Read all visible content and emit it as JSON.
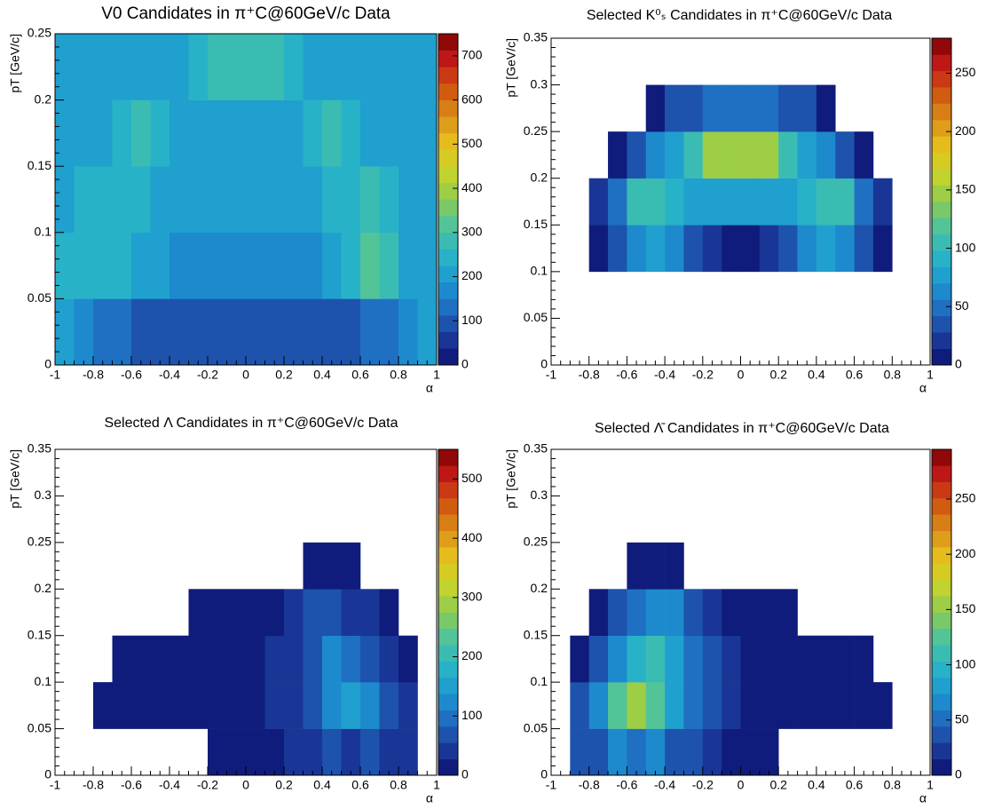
{
  "chart_data": [
    {
      "type": "heatmap",
      "title": "V0 Candidates in π⁺C@60GeV/c Data",
      "x_label": "α",
      "y_label": "pT [GeV/c]",
      "xlim": [
        -1,
        1
      ],
      "ylim": [
        0,
        0.25
      ],
      "zlim": [
        0,
        750
      ],
      "xticks": [
        -1,
        -0.8,
        -0.6,
        -0.4,
        -0.2,
        0,
        0.2,
        0.4,
        0.6,
        0.8,
        1
      ],
      "yticks": [
        0,
        0.05,
        0.1,
        0.15,
        0.2,
        0.25
      ],
      "zticks": [
        0,
        100,
        200,
        300,
        400,
        500,
        600,
        700
      ],
      "xbins": [
        -1,
        -0.9,
        -0.8,
        -0.7,
        -0.6,
        -0.5,
        -0.4,
        -0.3,
        -0.2,
        -0.1,
        0,
        0.1,
        0.2,
        0.3,
        0.4,
        0.5,
        0.6,
        0.7,
        0.8,
        0.9,
        1
      ],
      "ybins": [
        0,
        0.05,
        0.1,
        0.15,
        0.2,
        0.25
      ],
      "colorscale": [
        "#0b0f6e",
        "#1b3a9a",
        "#1f6cc0",
        "#1c97d2",
        "#29b5c6",
        "#4cc3a0",
        "#8ccc52",
        "#c6d42a",
        "#e6c11c",
        "#da8f17",
        "#d0560f",
        "#c41b17",
        "#7a0000"
      ],
      "z": [
        [
          200,
          160,
          140,
          120,
          110,
          100,
          100,
          100,
          100,
          100,
          100,
          100,
          100,
          100,
          100,
          110,
          120,
          130,
          150,
          200
        ],
        [
          230,
          230,
          260,
          230,
          200,
          190,
          180,
          180,
          180,
          180,
          180,
          180,
          180,
          180,
          200,
          260,
          330,
          280,
          220,
          220
        ],
        [
          220,
          230,
          260,
          260,
          230,
          210,
          200,
          200,
          200,
          200,
          200,
          200,
          200,
          210,
          230,
          260,
          280,
          240,
          210,
          210
        ],
        [
          200,
          200,
          200,
          230,
          270,
          240,
          220,
          210,
          210,
          210,
          210,
          210,
          220,
          240,
          270,
          230,
          200,
          200,
          200,
          200
        ],
        [
          190,
          190,
          190,
          190,
          190,
          200,
          220,
          260,
          280,
          290,
          290,
          280,
          260,
          220,
          200,
          190,
          190,
          190,
          190,
          190
        ]
      ]
    },
    {
      "type": "heatmap",
      "title": "Selected K⁰ₛ Candidates in π⁺C@60GeV/c Data",
      "x_label": "α",
      "y_label": "pT [GeV/c]",
      "xlim": [
        -1,
        1
      ],
      "ylim": [
        0,
        0.35
      ],
      "zlim": [
        0,
        280
      ],
      "xticks": [
        -1,
        -0.8,
        -0.6,
        -0.4,
        -0.2,
        0,
        0.2,
        0.4,
        0.6,
        0.8,
        1
      ],
      "yticks": [
        0,
        0.05,
        0.1,
        0.15,
        0.2,
        0.25,
        0.3,
        0.35
      ],
      "zticks": [
        0,
        50,
        100,
        150,
        200,
        250
      ],
      "xbins": [
        -1,
        -0.9,
        -0.8,
        -0.7,
        -0.6,
        -0.5,
        -0.4,
        -0.3,
        -0.2,
        -0.1,
        0,
        0.1,
        0.2,
        0.3,
        0.4,
        0.5,
        0.6,
        0.7,
        0.8,
        0.9,
        1
      ],
      "ybins": [
        0,
        0.05,
        0.1,
        0.15,
        0.2,
        0.25,
        0.3,
        0.35
      ],
      "colorscale": [
        "#0b0f6e",
        "#1b3a9a",
        "#1f6cc0",
        "#1c97d2",
        "#29b5c6",
        "#4cc3a0",
        "#8ccc52",
        "#c6d42a",
        "#e6c11c",
        "#da8f17",
        "#d0560f",
        "#c41b17",
        "#7a0000"
      ],
      "z": [
        [
          null,
          null,
          null,
          null,
          null,
          null,
          null,
          null,
          null,
          null,
          null,
          null,
          null,
          null,
          null,
          null,
          null,
          null,
          null,
          null
        ],
        [
          null,
          null,
          null,
          null,
          null,
          null,
          null,
          null,
          null,
          null,
          null,
          null,
          null,
          null,
          null,
          null,
          null,
          null,
          null,
          null
        ],
        [
          null,
          null,
          10,
          30,
          60,
          70,
          60,
          40,
          20,
          10,
          10,
          20,
          40,
          60,
          70,
          60,
          30,
          10,
          null,
          null
        ],
        [
          null,
          null,
          15,
          50,
          110,
          100,
          90,
          80,
          70,
          70,
          70,
          70,
          80,
          90,
          100,
          110,
          50,
          15,
          null,
          null
        ],
        [
          null,
          null,
          null,
          10,
          40,
          60,
          80,
          110,
          140,
          150,
          150,
          140,
          110,
          80,
          60,
          40,
          10,
          null,
          null,
          null
        ],
        [
          null,
          null,
          null,
          null,
          null,
          10,
          30,
          40,
          50,
          50,
          50,
          50,
          40,
          30,
          10,
          null,
          null,
          null,
          null,
          null
        ],
        [
          null,
          null,
          null,
          null,
          null,
          null,
          null,
          null,
          null,
          null,
          null,
          null,
          null,
          null,
          null,
          null,
          null,
          null,
          null,
          null
        ]
      ]
    },
    {
      "type": "heatmap",
      "title": "Selected Λ Candidates in π⁺C@60GeV/c Data",
      "x_label": "α",
      "y_label": "pT [GeV/c]",
      "xlim": [
        -1,
        1
      ],
      "ylim": [
        0,
        0.35
      ],
      "zlim": [
        0,
        550
      ],
      "xticks": [
        -1,
        -0.8,
        -0.6,
        -0.4,
        -0.2,
        0,
        0.2,
        0.4,
        0.6,
        0.8,
        1
      ],
      "yticks": [
        0,
        0.05,
        0.1,
        0.15,
        0.2,
        0.25,
        0.3,
        0.35
      ],
      "zticks": [
        0,
        100,
        200,
        300,
        400,
        500
      ],
      "xbins": [
        -1,
        -0.9,
        -0.8,
        -0.7,
        -0.6,
        -0.5,
        -0.4,
        -0.3,
        -0.2,
        -0.1,
        0,
        0.1,
        0.2,
        0.3,
        0.4,
        0.5,
        0.6,
        0.7,
        0.8,
        0.9,
        1
      ],
      "ybins": [
        0,
        0.05,
        0.1,
        0.15,
        0.2,
        0.25,
        0.3,
        0.35
      ],
      "colorscale": [
        "#0b0f6e",
        "#1b3a9a",
        "#1f6cc0",
        "#1c97d2",
        "#29b5c6",
        "#4cc3a0",
        "#8ccc52",
        "#c6d42a",
        "#e6c11c",
        "#da8f17",
        "#d0560f",
        "#c41b17",
        "#7a0000"
      ],
      "z": [
        [
          null,
          null,
          null,
          null,
          null,
          null,
          null,
          null,
          2,
          5,
          10,
          20,
          30,
          40,
          60,
          50,
          60,
          40,
          30,
          null
        ],
        [
          null,
          null,
          1,
          1,
          2,
          2,
          3,
          5,
          8,
          12,
          20,
          30,
          50,
          80,
          120,
          150,
          120,
          70,
          40,
          null
        ],
        [
          null,
          null,
          null,
          1,
          1,
          2,
          3,
          5,
          8,
          12,
          20,
          30,
          50,
          80,
          110,
          90,
          60,
          30,
          10,
          null
        ],
        [
          null,
          null,
          null,
          null,
          null,
          null,
          null,
          1,
          2,
          3,
          8,
          15,
          30,
          60,
          70,
          50,
          30,
          5,
          null,
          null
        ],
        [
          null,
          null,
          null,
          null,
          null,
          null,
          null,
          null,
          null,
          null,
          null,
          null,
          null,
          2,
          10,
          5,
          null,
          null,
          null,
          null
        ],
        [
          null,
          null,
          null,
          null,
          null,
          null,
          null,
          null,
          null,
          null,
          null,
          null,
          null,
          null,
          null,
          null,
          null,
          null,
          null,
          null
        ],
        [
          null,
          null,
          null,
          null,
          null,
          null,
          null,
          null,
          null,
          null,
          null,
          null,
          null,
          null,
          null,
          null,
          null,
          null,
          null,
          null
        ]
      ]
    },
    {
      "type": "heatmap",
      "title": "Selected Λ̄ Candidates in π⁺C@60GeV/c Data",
      "x_label": "α",
      "y_label": "pT [GeV/c]",
      "xlim": [
        -1,
        1
      ],
      "ylim": [
        0,
        0.35
      ],
      "zlim": [
        0,
        295
      ],
      "xticks": [
        -1,
        -0.8,
        -0.6,
        -0.4,
        -0.2,
        0,
        0.2,
        0.4,
        0.6,
        0.8,
        1
      ],
      "yticks": [
        0,
        0.05,
        0.1,
        0.15,
        0.2,
        0.25,
        0.3,
        0.35
      ],
      "zticks": [
        0,
        50,
        100,
        150,
        200,
        250
      ],
      "xbins": [
        -1,
        -0.9,
        -0.8,
        -0.7,
        -0.6,
        -0.5,
        -0.4,
        -0.3,
        -0.2,
        -0.1,
        0,
        0.1,
        0.2,
        0.3,
        0.4,
        0.5,
        0.6,
        0.7,
        0.8,
        0.9,
        1
      ],
      "ybins": [
        0,
        0.05,
        0.1,
        0.15,
        0.2,
        0.25,
        0.3,
        0.35
      ],
      "colorscale": [
        "#0b0f6e",
        "#1b3a9a",
        "#1f6cc0",
        "#1c97d2",
        "#29b5c6",
        "#4cc3a0",
        "#8ccc52",
        "#c6d42a",
        "#e6c11c",
        "#da8f17",
        "#d0560f",
        "#c41b17",
        "#7a0000"
      ],
      "z": [
        [
          null,
          30,
          40,
          60,
          50,
          60,
          40,
          30,
          20,
          10,
          5,
          2,
          null,
          null,
          null,
          null,
          null,
          null,
          null,
          null
        ],
        [
          null,
          40,
          70,
          120,
          150,
          120,
          80,
          50,
          30,
          20,
          12,
          8,
          5,
          3,
          2,
          2,
          1,
          1,
          null,
          null
        ],
        [
          null,
          10,
          30,
          60,
          90,
          110,
          80,
          50,
          30,
          20,
          12,
          8,
          5,
          3,
          2,
          1,
          1,
          null,
          null,
          null
        ],
        [
          null,
          null,
          5,
          30,
          50,
          70,
          60,
          30,
          15,
          8,
          3,
          2,
          1,
          null,
          null,
          null,
          null,
          null,
          null,
          null
        ],
        [
          null,
          null,
          null,
          null,
          5,
          10,
          2,
          null,
          null,
          null,
          null,
          null,
          null,
          null,
          null,
          null,
          null,
          null,
          null,
          null
        ],
        [
          null,
          null,
          null,
          null,
          null,
          null,
          null,
          null,
          null,
          null,
          null,
          null,
          null,
          null,
          null,
          null,
          null,
          null,
          null,
          null
        ],
        [
          null,
          null,
          null,
          null,
          null,
          null,
          null,
          null,
          null,
          null,
          null,
          null,
          null,
          null,
          null,
          null,
          null,
          null,
          null,
          null
        ]
      ]
    }
  ]
}
